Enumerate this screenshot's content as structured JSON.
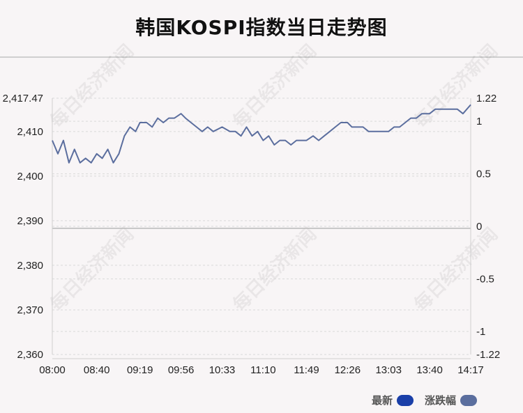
{
  "title": "韩国KOSPI指数当日走势图",
  "watermark": "每日经济新闻",
  "legend": [
    {
      "label": "最新",
      "color": "#1a3fa8"
    },
    {
      "label": "涨跌幅",
      "color": "#5b6e9e"
    }
  ],
  "colors": {
    "line": "#5b6e9e",
    "base_line": "#b9b9b9",
    "grid": "#d9d9d9"
  },
  "chart_data": {
    "type": "line",
    "title": "韩国KOSPI指数当日走势图",
    "xlabel": "",
    "ylabel": "",
    "x_ticks": [
      "08:00",
      "08:40",
      "09:19",
      "09:56",
      "10:33",
      "11:10",
      "11:49",
      "12:26",
      "13:03",
      "13:40",
      "14:17"
    ],
    "y_left_ticks": [
      "2,417.47",
      "2,410",
      "2,400",
      "2,390",
      "2,380",
      "2,370",
      "2,360"
    ],
    "y_right_ticks": [
      "1.22",
      "1",
      "0.5",
      "0",
      "-0.5",
      "-1",
      "-1.22"
    ],
    "ylim": [
      2360,
      2417.47
    ],
    "ylim_right": [
      -1.22,
      1.22
    ],
    "base_value": 2388.3,
    "grid": true,
    "legend_position": "bottom-right",
    "series": [
      {
        "name": "最新",
        "x": [
          "08:00",
          "08:05",
          "08:10",
          "08:15",
          "08:20",
          "08:25",
          "08:30",
          "08:35",
          "08:40",
          "08:45",
          "08:50",
          "08:55",
          "09:00",
          "09:05",
          "09:10",
          "09:15",
          "09:19",
          "09:25",
          "09:30",
          "09:35",
          "09:40",
          "09:45",
          "09:50",
          "09:56",
          "10:00",
          "10:05",
          "10:10",
          "10:15",
          "10:20",
          "10:25",
          "10:33",
          "10:40",
          "10:45",
          "10:50",
          "10:55",
          "11:00",
          "11:05",
          "11:10",
          "11:15",
          "11:20",
          "11:25",
          "11:30",
          "11:35",
          "11:40",
          "11:49",
          "11:55",
          "12:00",
          "12:05",
          "12:10",
          "12:15",
          "12:20",
          "12:26",
          "12:30",
          "12:35",
          "12:40",
          "12:45",
          "12:50",
          "12:55",
          "13:03",
          "13:08",
          "13:13",
          "13:18",
          "13:23",
          "13:28",
          "13:33",
          "13:40",
          "13:45",
          "13:50",
          "13:55",
          "14:00",
          "14:05",
          "14:10",
          "14:17"
        ],
        "values": [
          2408,
          2405,
          2408,
          2403,
          2406,
          2403,
          2404,
          2403,
          2405,
          2404,
          2406,
          2403,
          2405,
          2409,
          2411,
          2410,
          2412,
          2412,
          2411,
          2413,
          2412,
          2413,
          2413,
          2414,
          2413,
          2412,
          2411,
          2410,
          2411,
          2410,
          2411,
          2410,
          2410,
          2409,
          2411,
          2409,
          2410,
          2408,
          2409,
          2407,
          2408,
          2408,
          2407,
          2408,
          2408,
          2409,
          2408,
          2409,
          2410,
          2411,
          2412,
          2412,
          2411,
          2411,
          2411,
          2410,
          2410,
          2410,
          2410,
          2411,
          2411,
          2412,
          2413,
          2413,
          2414,
          2414,
          2415,
          2415,
          2415,
          2415,
          2415,
          2414,
          2416
        ]
      }
    ]
  }
}
